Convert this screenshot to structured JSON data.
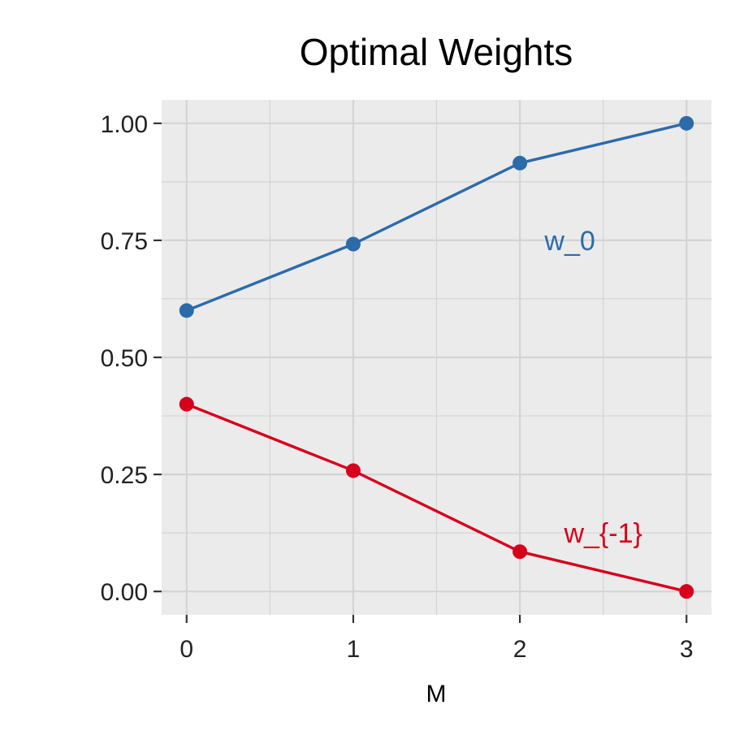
{
  "chart_data": {
    "type": "line",
    "title": "Optimal Weights",
    "xlabel": "M",
    "ylabel": "",
    "x": [
      0,
      1,
      2,
      3
    ],
    "xlim": [
      -0.15,
      3.15
    ],
    "ylim": [
      -0.05,
      1.05
    ],
    "x_ticks": [
      0,
      1,
      2,
      3
    ],
    "x_tick_labels": [
      "0",
      "1",
      "2",
      "3"
    ],
    "y_ticks": [
      0,
      0.25,
      0.5,
      0.75,
      1.0
    ],
    "y_tick_labels": [
      "0.00",
      "0.25",
      "0.50",
      "0.75",
      "1.00"
    ],
    "grid": true,
    "legend": "none",
    "panel_background": "#EBEBEB",
    "grid_color": "#D4D4D4",
    "series": [
      {
        "name": "w_0",
        "values": [
          0.6,
          0.742,
          0.915,
          1.0
        ],
        "color": "#2B6BAA",
        "label": {
          "text": "w_0",
          "x": 2.3,
          "y": 0.75
        }
      },
      {
        "name": "w_{-1}",
        "values": [
          0.4,
          0.258,
          0.085,
          0.0
        ],
        "color": "#D7001C",
        "label": {
          "text": "w_{-1}",
          "x": 2.5,
          "y": 0.125
        }
      }
    ]
  }
}
